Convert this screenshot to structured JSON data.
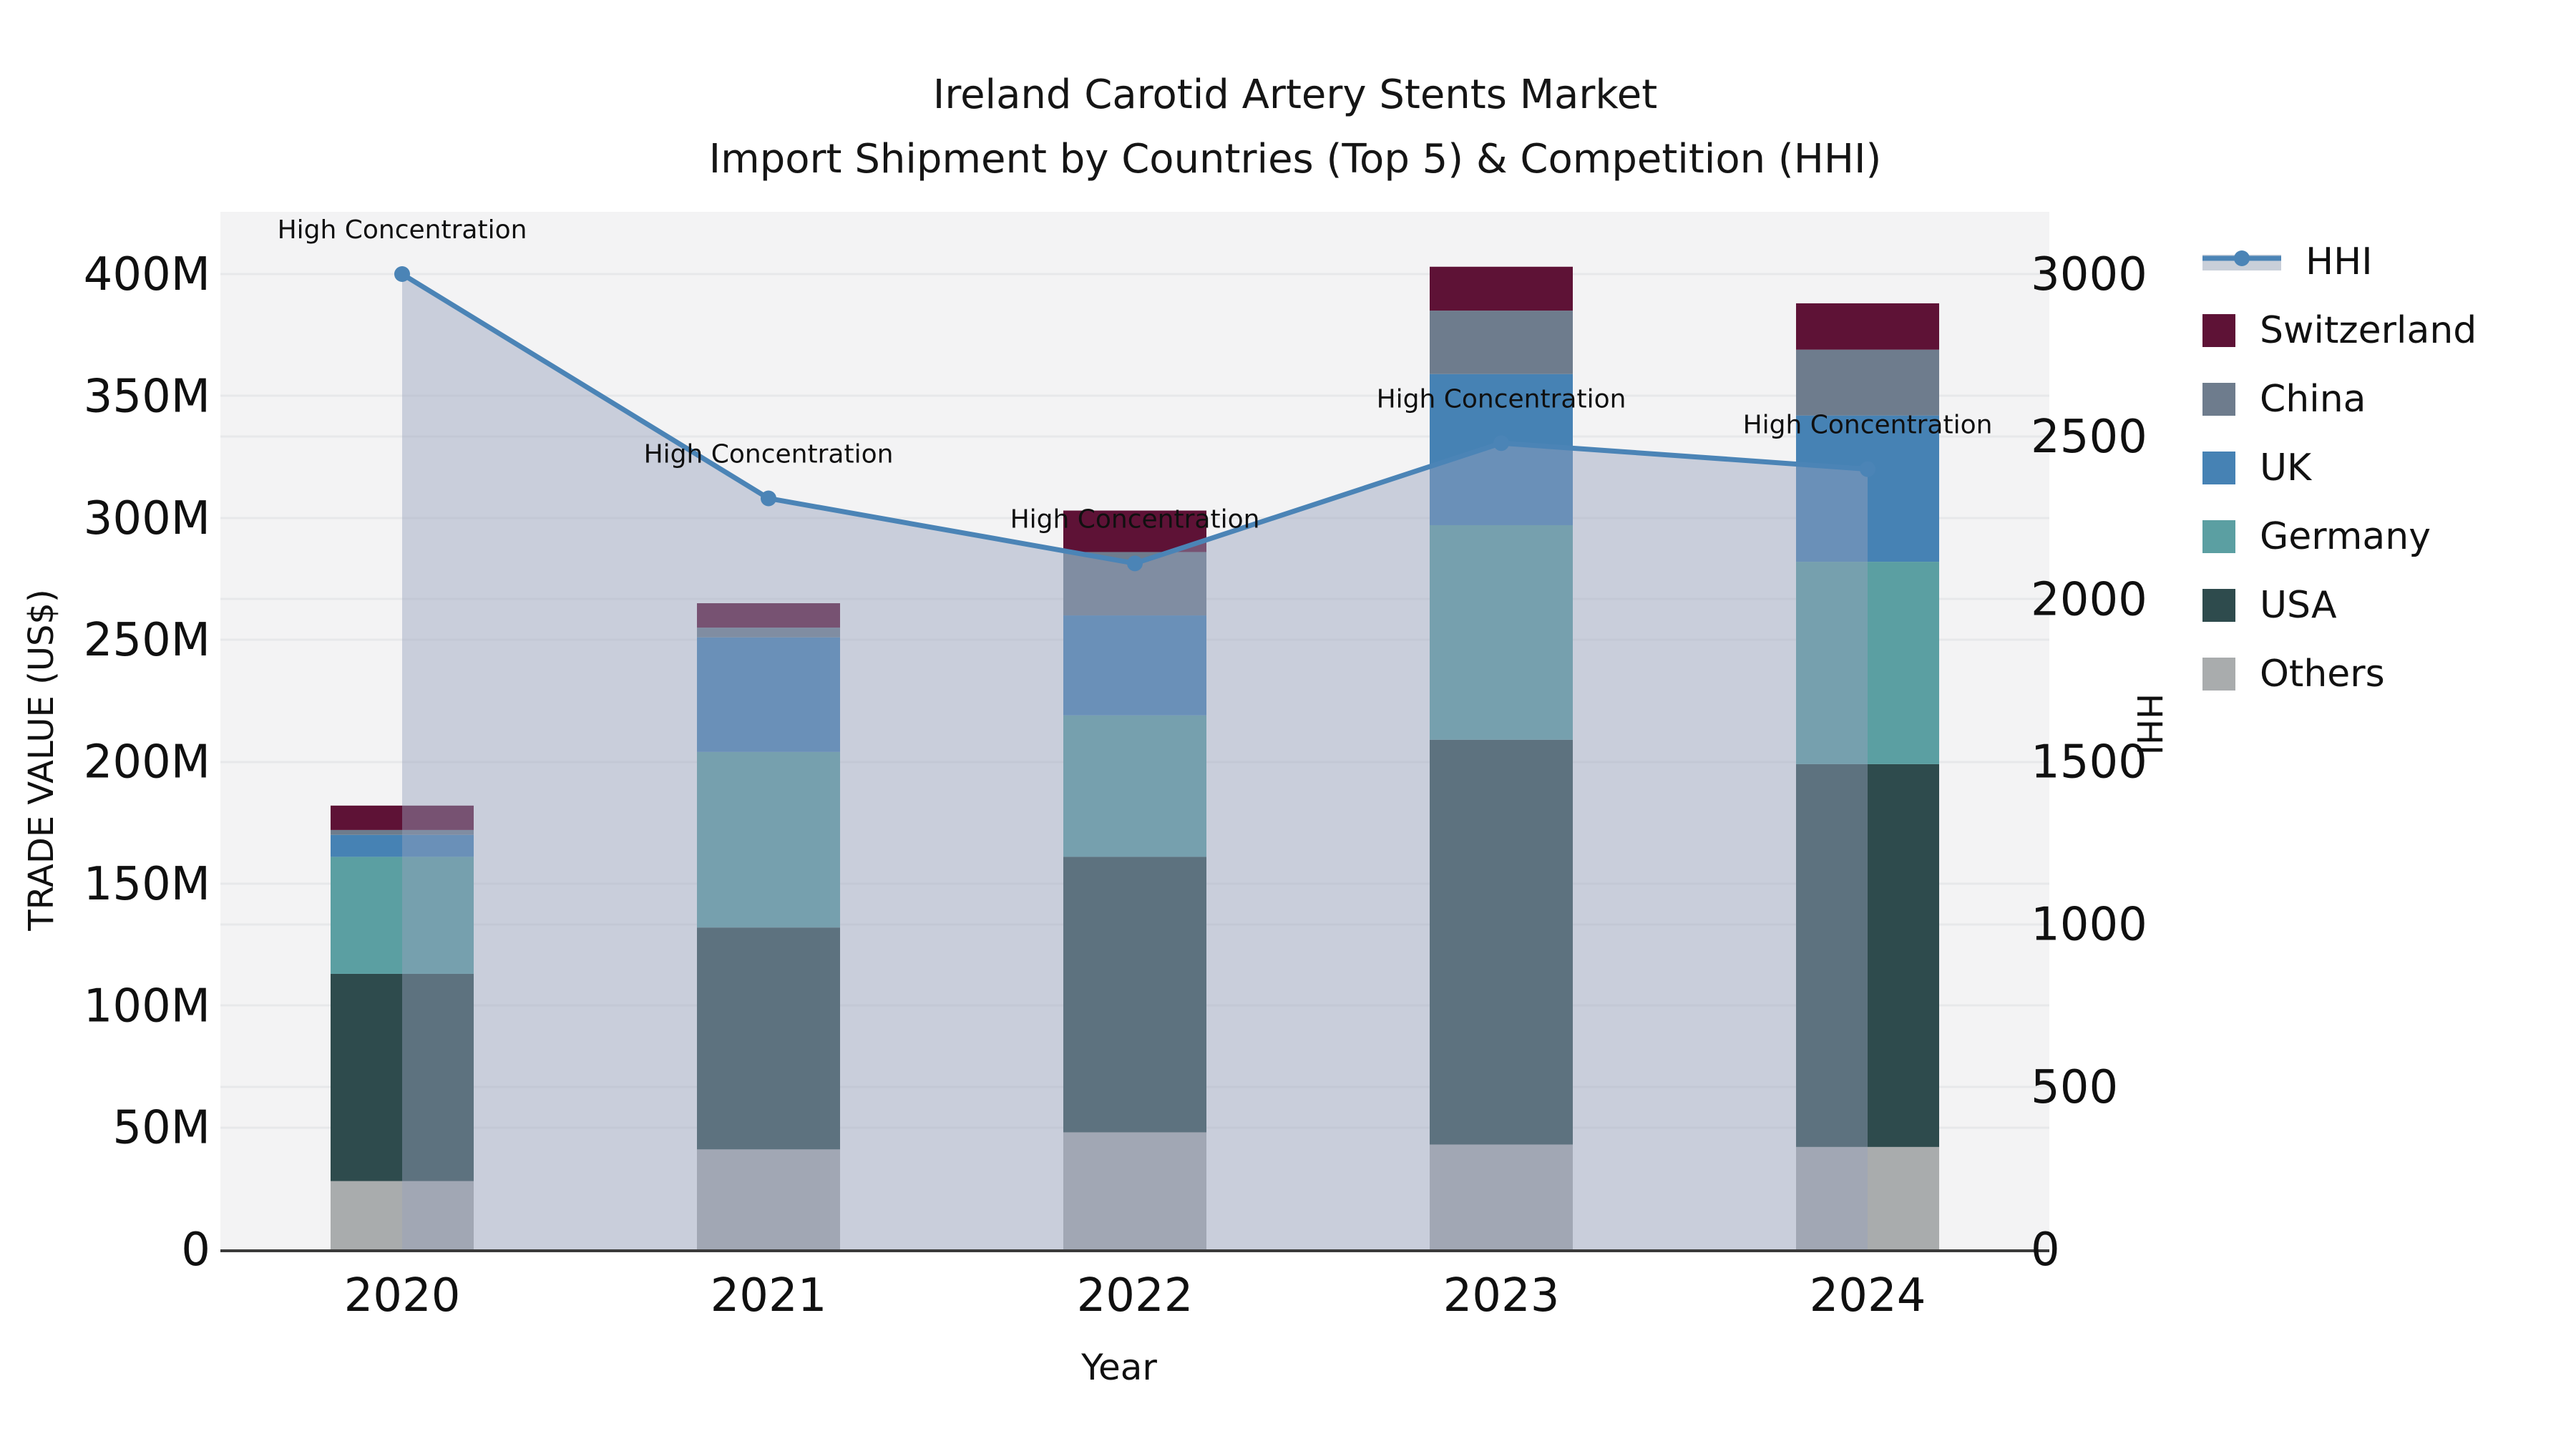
{
  "title": {
    "line1": "Ireland Carotid Artery Stents Market",
    "line2": "Import Shipment by Countries (Top 5) & Competition (HHI)"
  },
  "axes": {
    "x_label": "Year",
    "y_left_label": "TRADE VALUE (US$)",
    "y_right_label": "HHI",
    "y_left_ticks": [
      "0",
      "50M",
      "100M",
      "150M",
      "200M",
      "250M",
      "300M",
      "350M",
      "400M"
    ],
    "y_right_ticks": [
      "0",
      "500",
      "1000",
      "1500",
      "2000",
      "2500",
      "3000"
    ]
  },
  "chart_data": {
    "type": "combo: stacked-bar + line-with-area",
    "title": "Ireland Carotid Artery Stents Market — Import Shipment by Countries (Top 5) & Competition (HHI)",
    "categories": [
      "2020",
      "2021",
      "2022",
      "2023",
      "2024"
    ],
    "xlabel": "Year",
    "ylabel_left": "TRADE VALUE (US$)",
    "ylabel_right": "HHI",
    "y_left_axis": {
      "min": 0,
      "max": 400,
      "unit": "M",
      "tick_step": 50
    },
    "y_right_axis": {
      "min": 0,
      "max": 3000,
      "tick_step": 500
    },
    "grid": true,
    "legend_position": "right",
    "bar_series_bottom_to_top": [
      {
        "name": "Others",
        "color": "#a9acad",
        "values": [
          28,
          41,
          48,
          43,
          42
        ]
      },
      {
        "name": "USA",
        "color": "#2e4b4d",
        "values": [
          85,
          91,
          113,
          166,
          157
        ]
      },
      {
        "name": "Germany",
        "color": "#5b9fa2",
        "values": [
          48,
          72,
          58,
          88,
          83
        ]
      },
      {
        "name": "UK",
        "color": "#4682b4",
        "values": [
          9,
          47,
          41,
          62,
          60
        ]
      },
      {
        "name": "China",
        "color": "#6e7c8d",
        "values": [
          2,
          4,
          26,
          26,
          27
        ]
      },
      {
        "name": "Switzerland",
        "color": "#5e1236",
        "values": [
          10,
          10,
          17,
          18,
          19
        ]
      }
    ],
    "bar_totals": [
      182,
      265,
      303,
      403,
      388
    ],
    "line_series": {
      "name": "HHI",
      "color": "#4b84b6",
      "marker": "circle",
      "area_fill": "rgba(150,162,188,0.45)",
      "values": [
        3000,
        2310,
        2110,
        2480,
        2400
      ]
    },
    "annotations": [
      {
        "text": "High Concentration",
        "category": "2020",
        "hhi": 3000
      },
      {
        "text": "High Concentration",
        "category": "2021",
        "hhi": 2310
      },
      {
        "text": "High Concentration",
        "category": "2022",
        "hhi": 2110
      },
      {
        "text": "High Concentration",
        "category": "2023",
        "hhi": 2480
      },
      {
        "text": "High Concentration",
        "category": "2024",
        "hhi": 2400
      }
    ]
  },
  "legend": {
    "items": [
      {
        "label": "HHI",
        "type": "line",
        "color": "#4b84b6"
      },
      {
        "label": "Switzerland",
        "type": "patch",
        "color": "#5e1236"
      },
      {
        "label": "China",
        "type": "patch",
        "color": "#6e7c8d"
      },
      {
        "label": "UK",
        "type": "patch",
        "color": "#4682b4"
      },
      {
        "label": "Germany",
        "type": "patch",
        "color": "#5b9fa2"
      },
      {
        "label": "USA",
        "type": "patch",
        "color": "#2e4b4d"
      },
      {
        "label": "Others",
        "type": "patch",
        "color": "#a9acad"
      }
    ]
  },
  "style_colors": {
    "plot_background": "#f3f3f4",
    "gridline": "#e7e8ea",
    "axis_spine": "#3a3a3a",
    "text": "#101010",
    "annotation_text": "#101010",
    "legend_area_band": "#c9cfd9"
  }
}
